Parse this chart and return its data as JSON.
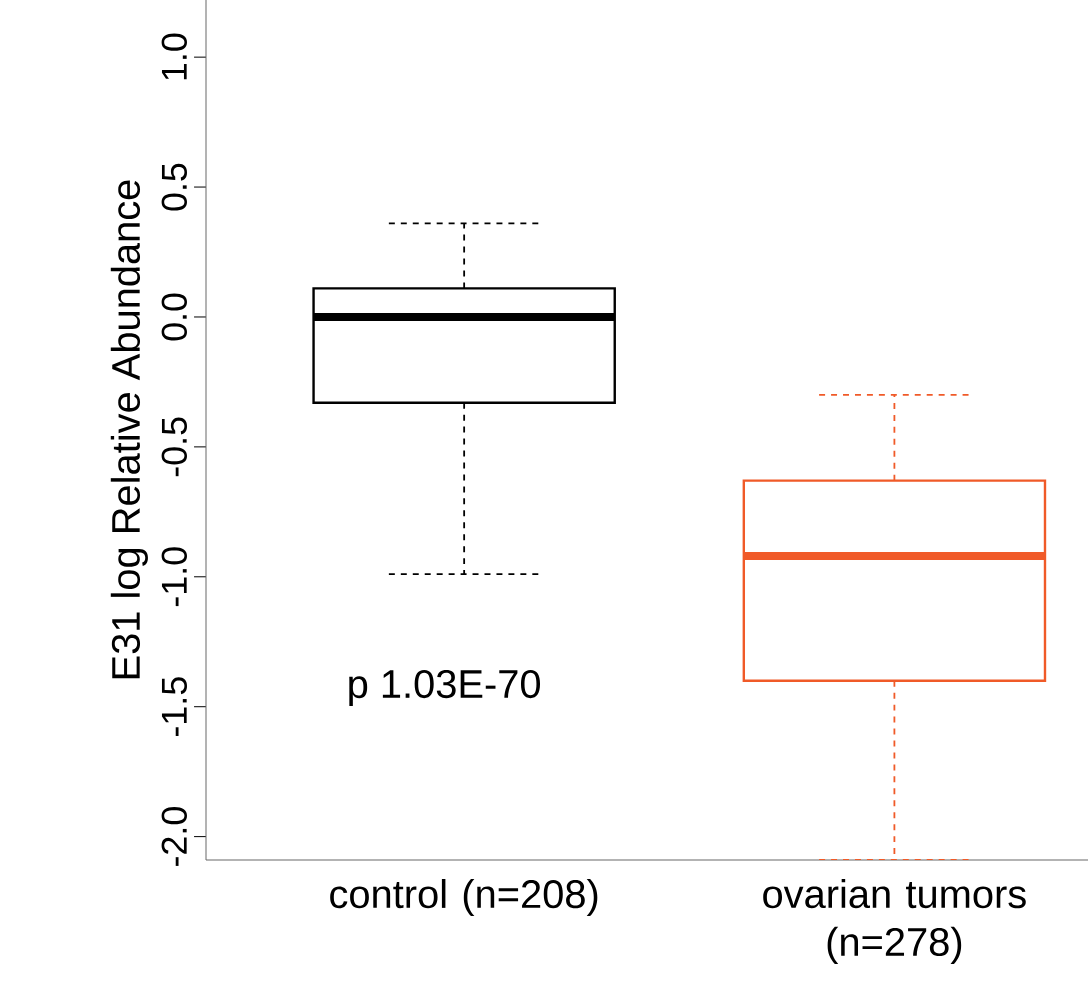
{
  "chart_data": {
    "type": "box",
    "ylabel": "E31 log Relative Abundance",
    "categories": [
      "control (n=208)",
      "ovarian tumors (n=278)"
    ],
    "colors": [
      "#000000",
      "#f05a28"
    ],
    "boxes": [
      {
        "low": -0.99,
        "q1": -0.33,
        "median": 0.0,
        "q3": 0.11,
        "high": 0.36
      },
      {
        "low": -2.09,
        "q1": -1.4,
        "median": -0.92,
        "q3": -0.63,
        "high": -0.3
      }
    ],
    "ylim": [
      -2.09,
      1.22
    ],
    "yticks": [
      {
        "value": -2,
        "label": "-2.0"
      },
      -1.5,
      {
        "value": -1,
        "label": "-1.0"
      },
      -0.5,
      {
        "value": 0,
        "label": "0.0"
      },
      0.5,
      {
        "value": 1,
        "label": "1.0"
      }
    ],
    "annotations": [
      "p 1.03E-70"
    ]
  }
}
